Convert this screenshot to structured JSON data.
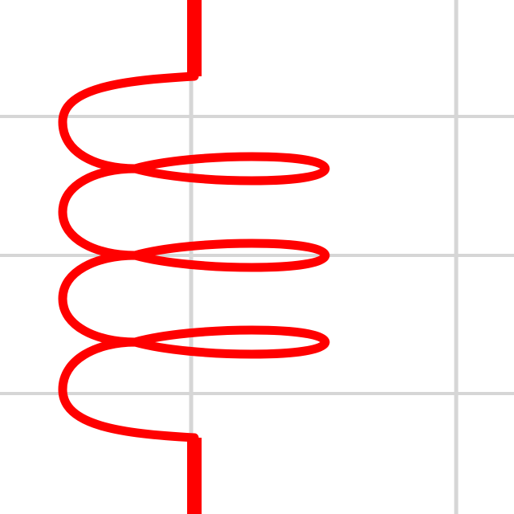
{
  "diagram": {
    "component": "inductor-coil",
    "turns": 4,
    "inner_loops": 3,
    "colors": {
      "background": "#ffffff",
      "grid": "#d6d6d6",
      "coil": "#ff0000"
    }
  }
}
